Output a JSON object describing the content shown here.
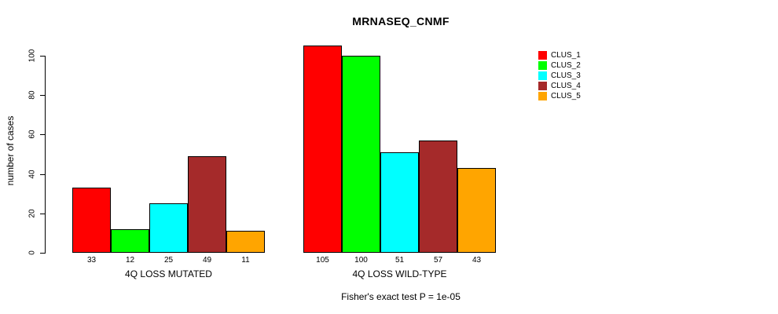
{
  "chart_data": {
    "type": "bar",
    "title": "MRNASEQ_CNMF",
    "ylabel": "number of cases",
    "xlabel": "",
    "yticks": [
      0,
      20,
      40,
      60,
      80,
      100
    ],
    "ylim": [
      0,
      107
    ],
    "grid": false,
    "groups": [
      {
        "label": "4Q LOSS MUTATED",
        "values": [
          33,
          12,
          25,
          49,
          11
        ]
      },
      {
        "label": "4Q LOSS WILD-TYPE",
        "values": [
          105,
          100,
          51,
          57,
          43
        ]
      }
    ],
    "series_colors": [
      "#FF0000",
      "#00FF00",
      "#00FFFF",
      "#A52A2A",
      "#FFA500"
    ],
    "legend": {
      "position": "right",
      "entries": [
        {
          "label": "CLUS_1",
          "color": "#FF0000"
        },
        {
          "label": "CLUS_2",
          "color": "#00FF00"
        },
        {
          "label": "CLUS_3",
          "color": "#00FFFF"
        },
        {
          "label": "CLUS_4",
          "color": "#A52A2A"
        },
        {
          "label": "CLUS_5",
          "color": "#FFA500"
        }
      ]
    },
    "annotation": "Fisher's exact test P = 1e-05"
  }
}
